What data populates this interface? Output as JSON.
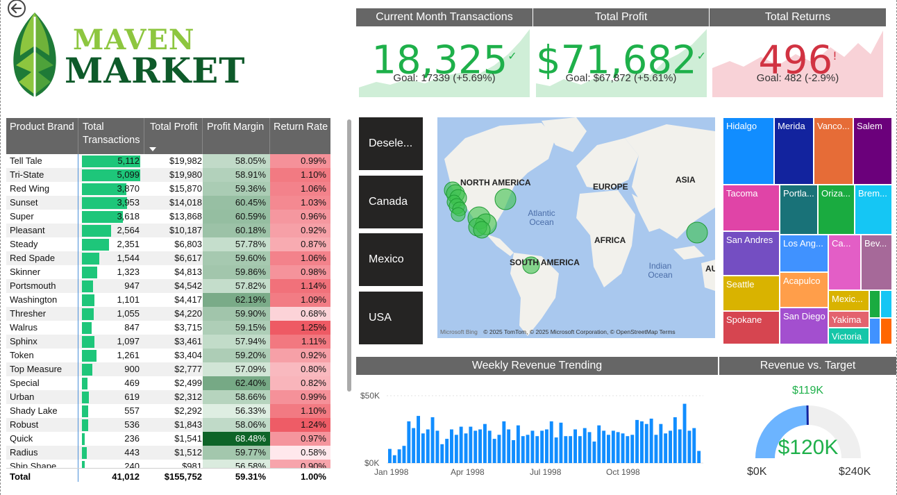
{
  "logo": {
    "line1": "MAVEN",
    "line2": "MARKET"
  },
  "kpis": [
    {
      "title": "Current Month Transactions",
      "value": "18,325",
      "mark": "✓",
      "goal": "Goal: 17339 (+5.69%)",
      "status_color": "#1eb04a",
      "bg_color": "#cfeed7"
    },
    {
      "title": "Total Profit",
      "value": "$71,682",
      "mark": "✓",
      "goal": "Goal: $67,872 (+5.61%)",
      "status_color": "#1eb04a",
      "bg_color": "#cfeed7"
    },
    {
      "title": "Total Returns",
      "value": "496",
      "mark": "!",
      "goal": "Goal: 482 (-2.9%)",
      "status_color": "#d13342",
      "bg_color": "#f8d2d7"
    }
  ],
  "table": {
    "headers": {
      "brand": "Product Brand",
      "transactions": "Total Transactions",
      "profit": "Total Profit",
      "margin": "Profit Margin",
      "return_rate": "Return Rate"
    },
    "rows": [
      {
        "brand": "Tell Tale",
        "transactions": "5,112",
        "profit": "$19,982",
        "margin": "58.05%",
        "return_rate": "0.99%"
      },
      {
        "brand": "Tri-State",
        "transactions": "5,099",
        "profit": "$19,980",
        "margin": "58.91%",
        "return_rate": "1.10%"
      },
      {
        "brand": "Red Wing",
        "transactions": "3,870",
        "profit": "$15,870",
        "margin": "59.36%",
        "return_rate": "1.06%"
      },
      {
        "brand": "Sunset",
        "transactions": "3,953",
        "profit": "$14,018",
        "margin": "60.45%",
        "return_rate": "1.03%"
      },
      {
        "brand": "Super",
        "transactions": "3,618",
        "profit": "$13,868",
        "margin": "60.59%",
        "return_rate": "0.96%"
      },
      {
        "brand": "Pleasant",
        "transactions": "2,564",
        "profit": "$10,187",
        "margin": "60.18%",
        "return_rate": "0.92%"
      },
      {
        "brand": "Steady",
        "transactions": "2,351",
        "profit": "$6,803",
        "margin": "57.78%",
        "return_rate": "0.87%"
      },
      {
        "brand": "Red Spade",
        "transactions": "1,544",
        "profit": "$6,617",
        "margin": "59.60%",
        "return_rate": "1.06%"
      },
      {
        "brand": "Skinner",
        "transactions": "1,323",
        "profit": "$4,813",
        "margin": "59.86%",
        "return_rate": "0.98%"
      },
      {
        "brand": "Portsmouth",
        "transactions": "947",
        "profit": "$4,542",
        "margin": "57.82%",
        "return_rate": "1.14%"
      },
      {
        "brand": "Washington",
        "transactions": "1,101",
        "profit": "$4,417",
        "margin": "62.19%",
        "return_rate": "1.09%"
      },
      {
        "brand": "Thresher",
        "transactions": "1,055",
        "profit": "$4,220",
        "margin": "59.90%",
        "return_rate": "0.68%"
      },
      {
        "brand": "Walrus",
        "transactions": "847",
        "profit": "$3,715",
        "margin": "59.15%",
        "return_rate": "1.25%"
      },
      {
        "brand": "Sphinx",
        "transactions": "1,097",
        "profit": "$3,461",
        "margin": "57.94%",
        "return_rate": "1.11%"
      },
      {
        "brand": "Token",
        "transactions": "1,261",
        "profit": "$3,404",
        "margin": "59.20%",
        "return_rate": "0.92%"
      },
      {
        "brand": "Top Measure",
        "transactions": "900",
        "profit": "$2,777",
        "margin": "57.09%",
        "return_rate": "0.80%"
      },
      {
        "brand": "Special",
        "transactions": "469",
        "profit": "$2,499",
        "margin": "62.40%",
        "return_rate": "0.82%"
      },
      {
        "brand": "Urban",
        "transactions": "619",
        "profit": "$2,312",
        "margin": "58.66%",
        "return_rate": "0.99%"
      },
      {
        "brand": "Shady Lake",
        "transactions": "557",
        "profit": "$2,292",
        "margin": "56.33%",
        "return_rate": "1.10%"
      },
      {
        "brand": "Robust",
        "transactions": "536",
        "profit": "$1,843",
        "margin": "58.06%",
        "return_rate": "1.24%"
      },
      {
        "brand": "Quick",
        "transactions": "236",
        "profit": "$1,541",
        "margin": "68.48%",
        "return_rate": "0.97%"
      },
      {
        "brand": "Radius",
        "transactions": "443",
        "profit": "$1,512",
        "margin": "59.77%",
        "return_rate": "0.58%"
      },
      {
        "brand": "Ship Shape",
        "transactions": "240",
        "profit": "$981",
        "margin": "56.58%",
        "return_rate": "0.90%"
      }
    ],
    "total": {
      "label": "Total",
      "transactions": "41,012",
      "profit": "$155,752",
      "margin": "59.31%",
      "return_rate": "1.00%"
    }
  },
  "slicer": {
    "items": [
      "Desele...",
      "Canada",
      "Mexico",
      "USA"
    ]
  },
  "map": {
    "labels": {
      "na": "NORTH AMERICA",
      "eu": "EUROPE",
      "asia": "ASIA",
      "af": "AFRICA",
      "sa": "SOUTH AMERICA",
      "au": "AU"
    },
    "oceans": {
      "atlantic": "Atlantic Ocean",
      "indian": "Indian Ocean"
    },
    "bing": "Microsoft Bing",
    "attribution": "© 2025 TomTom, © 2025 Microsoft Corporation, © OpenStreetMap  Terms"
  },
  "treemap": [
    {
      "label": "Hidalgo",
      "color": "#118dff"
    },
    {
      "label": "Merida",
      "color": "#12239e"
    },
    {
      "label": "Vanco...",
      "color": "#e66c37"
    },
    {
      "label": "Salem",
      "color": "#6b007b"
    },
    {
      "label": "Tacoma",
      "color": "#e044a7"
    },
    {
      "label": "Portla...",
      "color": "#197278"
    },
    {
      "label": "Oriza...",
      "color": "#1aab40"
    },
    {
      "label": "Brem...",
      "color": "#15c6f4"
    },
    {
      "label": "San Andres",
      "color": "#744ec2"
    },
    {
      "label": "Los Ang...",
      "color": "#4092ff"
    },
    {
      "label": "Ca...",
      "color": "#e35ec6"
    },
    {
      "label": "Bev...",
      "color": "#a66999"
    },
    {
      "label": "Seattle",
      "color": "#d9b300"
    },
    {
      "label": "Acapulco",
      "color": "#ff9e4a"
    },
    {
      "label": "Mexic...",
      "color": "#d9b300"
    },
    {
      "label": "Spokane",
      "color": "#d64550"
    },
    {
      "label": "San Diego",
      "color": "#a34fcf"
    },
    {
      "label": "Yakima",
      "color": "#e3636e"
    },
    {
      "label": "Victoria",
      "color": "#15c6a8"
    }
  ],
  "weekly": {
    "title": "Weekly Revenue Trending",
    "ytick_top": "$50K",
    "ytick_bottom": "$0K",
    "xticks": [
      "Jan 1998",
      "Apr 1998",
      "Jul 1998",
      "Oct 1998"
    ],
    "bar_color": "#118dff"
  },
  "gauge": {
    "title": "Revenue vs. Target",
    "value_label": "$120K",
    "target_label": "$119K",
    "min_label": "$0K",
    "max_label": "$240K",
    "fill_color": "#6cb4ff",
    "value_color": "#1eb04a"
  },
  "chart_data": [
    {
      "type": "bar",
      "title": "Weekly Revenue Trending",
      "xlabel": "",
      "ylabel": "",
      "ylim": [
        0,
        50000
      ],
      "x_ticks": [
        "Jan 1998",
        "Apr 1998",
        "Jul 1998",
        "Oct 1998"
      ],
      "values": [
        10500,
        5800,
        10200,
        12800,
        31000,
        26000,
        35000,
        22000,
        25000,
        34000,
        24000,
        14000,
        18000,
        25000,
        21000,
        27000,
        22000,
        27000,
        24000,
        25000,
        29000,
        24000,
        18000,
        21000,
        31000,
        25000,
        17000,
        28000,
        20000,
        21000,
        24000,
        20000,
        24000,
        25000,
        31000,
        19000,
        30000,
        20000,
        20000,
        25000,
        20000,
        26000,
        23000,
        16000,
        28000,
        24000,
        21000,
        24000,
        23000,
        22000,
        20000,
        21000,
        32000,
        31000,
        29000,
        33000,
        21000,
        29000,
        22000,
        24000,
        34000,
        25000,
        44000,
        24000,
        26000,
        9000
      ]
    },
    {
      "type": "gauge",
      "title": "Revenue vs. Target",
      "value": 120000,
      "target": 119000,
      "min": 0,
      "max": 240000
    }
  ]
}
